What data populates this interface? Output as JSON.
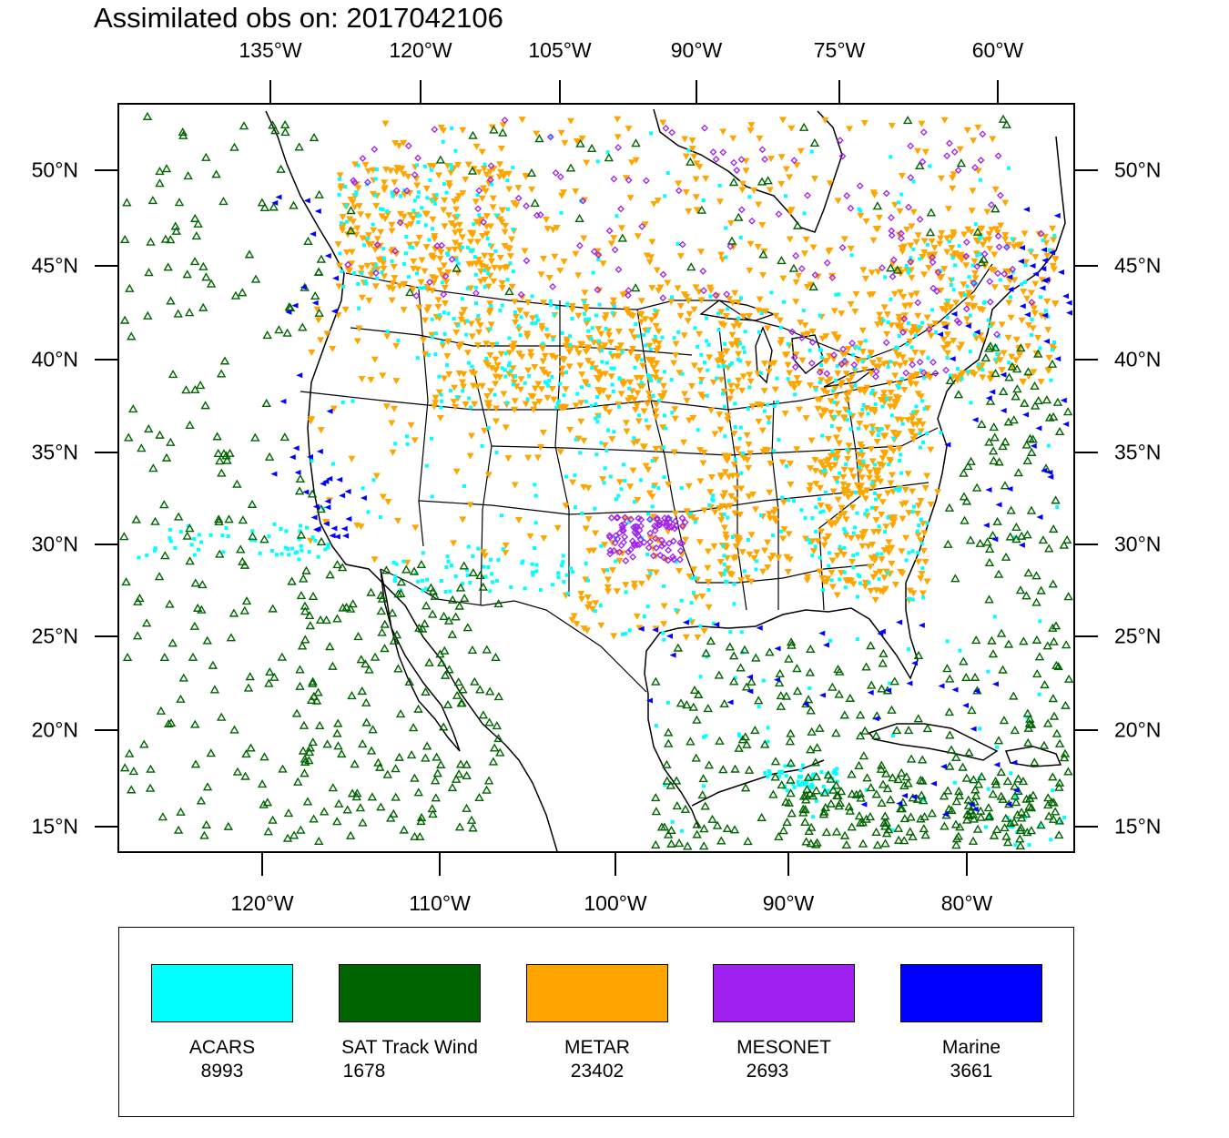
{
  "title": "Assimilated obs on: 2017042106",
  "axes": {
    "top_ticks": [
      "135°W",
      "120°W",
      "105°W",
      "90°W",
      "75°W",
      "60°W"
    ],
    "bottom_ticks": [
      "120°W",
      "110°W",
      "100°W",
      "90°W",
      "80°W"
    ],
    "lat_ticks": [
      "50°N",
      "45°N",
      "40°N",
      "35°N",
      "30°N",
      "25°N",
      "20°N",
      "15°N"
    ]
  },
  "legend": [
    {
      "name": "ACARS",
      "count": "8993",
      "color": "#00ffff",
      "marker": "square"
    },
    {
      "name": "SAT Track Wind",
      "count": "1678",
      "color": "#006400",
      "marker": "open-triangle"
    },
    {
      "name": "METAR",
      "count": "23402",
      "color": "#ffa500",
      "marker": "down-triangle"
    },
    {
      "name": "MESONET",
      "count": "2693",
      "color": "#a020f0",
      "marker": "diamond"
    },
    {
      "name": "Marine",
      "count": "3661",
      "color": "#0000ff",
      "marker": "left-triangle"
    }
  ]
}
